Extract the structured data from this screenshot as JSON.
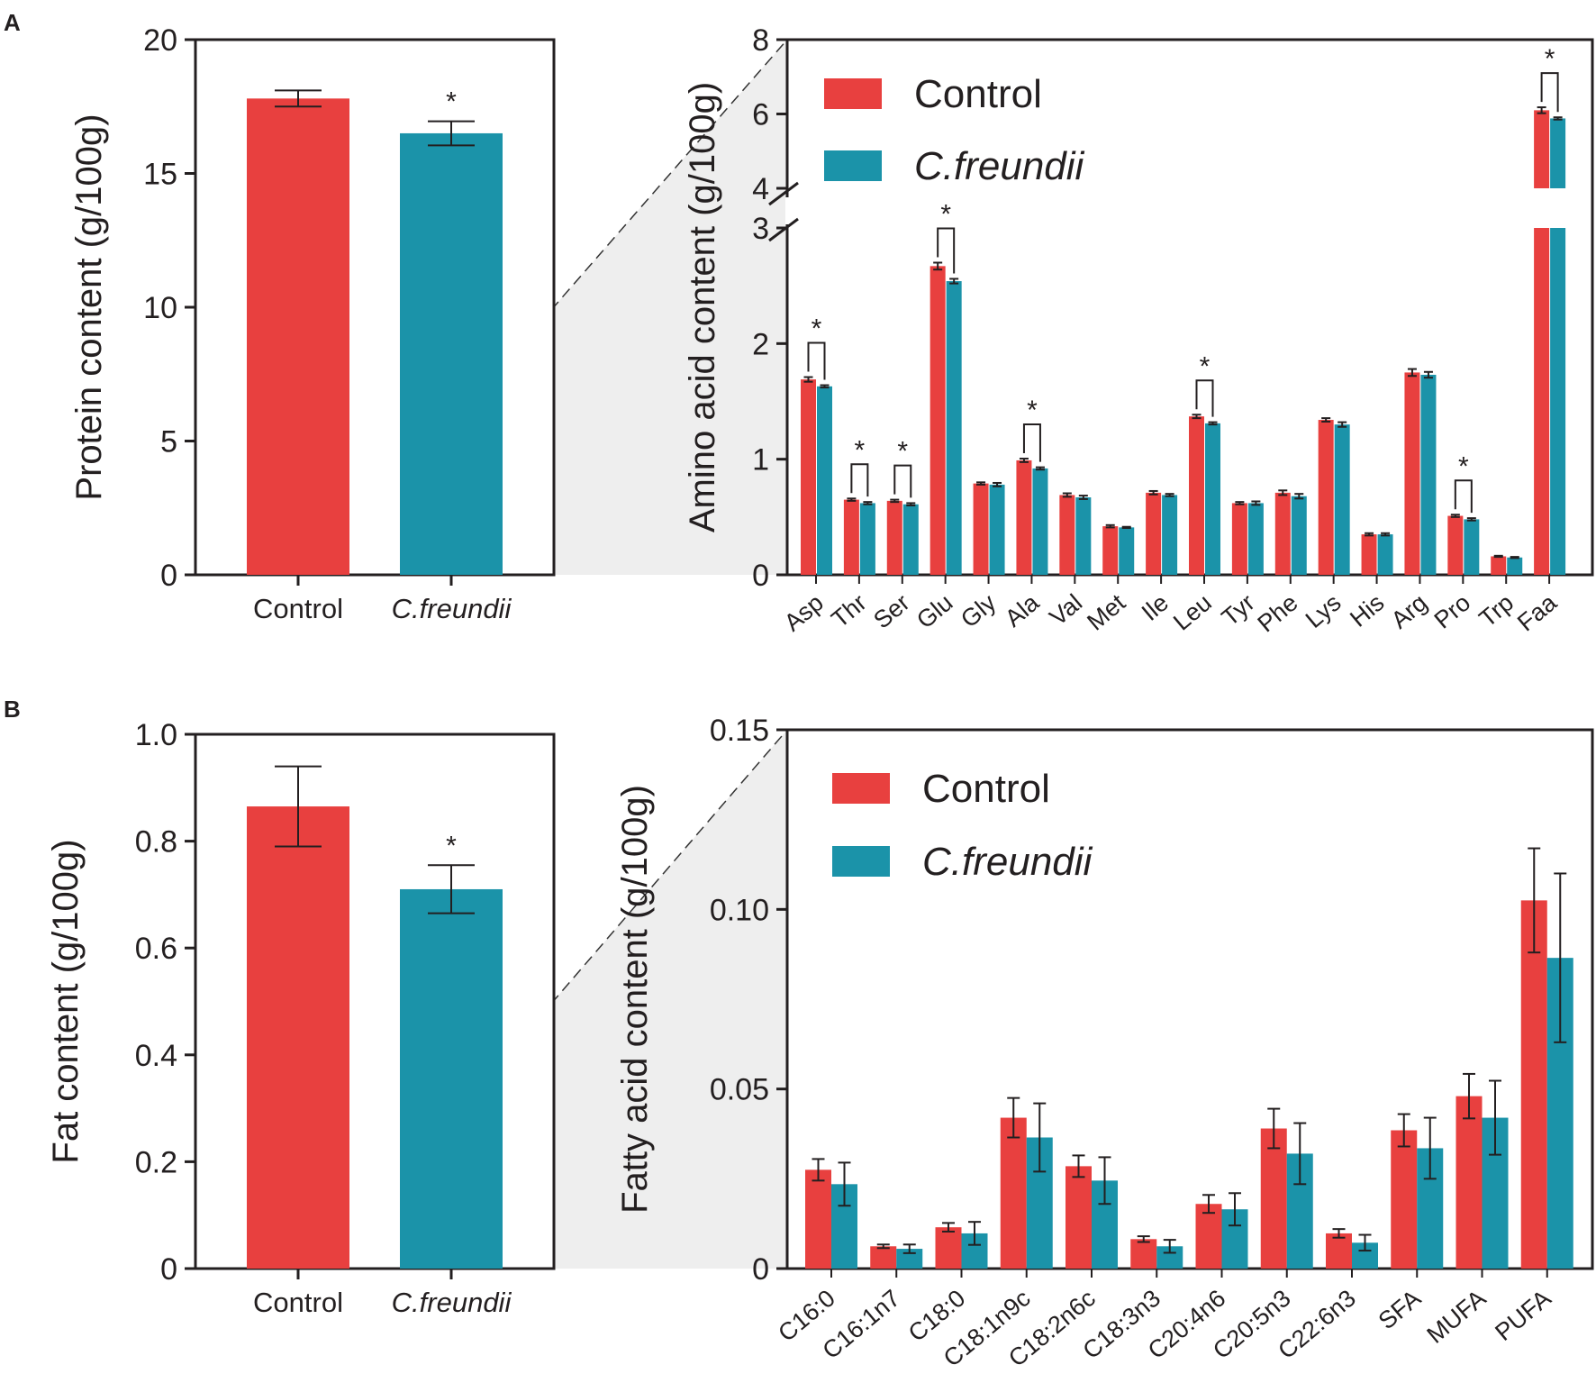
{
  "colors": {
    "control": "#e8403f",
    "treatment": "#1b93a9",
    "axis": "#231f20",
    "zoom_fill": "#eeeeee"
  },
  "panels": {
    "a": "A",
    "b": "B"
  },
  "legend": {
    "control": "Control",
    "treatment": "C.freundii"
  },
  "chart_data": [
    {
      "id": "protein",
      "type": "bar",
      "title": "",
      "xlabel": "",
      "ylabel": "Protein content (g/100g)",
      "ylim": [
        0,
        20
      ],
      "yticks": [
        0,
        5,
        10,
        15,
        20
      ],
      "categories": [
        "Control",
        "C.freundii"
      ],
      "values": [
        17.8,
        16.5
      ],
      "errors": [
        0.3,
        0.45
      ],
      "significance": [
        false,
        true
      ]
    },
    {
      "id": "amino_acid",
      "type": "bar",
      "title": "",
      "xlabel": "",
      "ylabel": "Amino acid content (g/100g)",
      "ylim": [
        0,
        8
      ],
      "axis_break": [
        3,
        4
      ],
      "yticks": [
        0,
        1,
        2,
        3,
        4,
        6,
        8
      ],
      "categories": [
        "Asp",
        "Thr",
        "Ser",
        "Glu",
        "Gly",
        "Ala",
        "Val",
        "Met",
        "Ile",
        "Leu",
        "Tyr",
        "Phe",
        "Lys",
        "His",
        "Arg",
        "Pro",
        "Trp",
        "Faa"
      ],
      "series": [
        {
          "name": "Control",
          "values": [
            1.69,
            0.65,
            0.64,
            2.67,
            0.79,
            0.99,
            0.69,
            0.42,
            0.71,
            1.37,
            0.62,
            0.71,
            1.34,
            0.35,
            1.75,
            0.51,
            0.16,
            6.1
          ],
          "errors": [
            0.02,
            0.01,
            0.01,
            0.03,
            0.01,
            0.015,
            0.015,
            0.01,
            0.015,
            0.015,
            0.01,
            0.02,
            0.015,
            0.01,
            0.03,
            0.01,
            0.005,
            0.08
          ]
        },
        {
          "name": "C.freundii",
          "values": [
            1.63,
            0.62,
            0.61,
            2.54,
            0.78,
            0.92,
            0.67,
            0.41,
            0.69,
            1.31,
            0.62,
            0.68,
            1.3,
            0.35,
            1.73,
            0.48,
            0.15,
            5.88
          ],
          "errors": [
            0.01,
            0.01,
            0.01,
            0.02,
            0.015,
            0.01,
            0.015,
            0.005,
            0.01,
            0.01,
            0.015,
            0.02,
            0.02,
            0.01,
            0.025,
            0.01,
            0.005,
            0.03
          ]
        }
      ],
      "significant": [
        "Asp",
        "Thr",
        "Ser",
        "Glu",
        "Ala",
        "Leu",
        "Pro",
        "Faa"
      ]
    },
    {
      "id": "fat",
      "type": "bar",
      "title": "",
      "xlabel": "",
      "ylabel": "Fat content (g/100g)",
      "ylim": [
        0,
        1.0
      ],
      "yticks": [
        "0",
        "0.2",
        "0.4",
        "0.6",
        "0.8",
        "1.0"
      ],
      "categories": [
        "Control",
        "C.freundii"
      ],
      "values": [
        0.865,
        0.71
      ],
      "errors": [
        0.075,
        0.045
      ],
      "significance": [
        false,
        true
      ]
    },
    {
      "id": "fatty_acid",
      "type": "bar",
      "title": "",
      "xlabel": "",
      "ylabel": "Fatty acid content (g/100g)",
      "ylim": [
        0,
        0.15
      ],
      "yticks": [
        "0",
        "0.05",
        "0.10",
        "0.15"
      ],
      "categories": [
        "C16:0",
        "C16:1n7",
        "C18:0",
        "C18:1n9c",
        "C18:2n6c",
        "C18:3n3",
        "C20:4n6",
        "C20:5n3",
        "C22:6n3",
        "SFA",
        "MUFA",
        "PUFA"
      ],
      "series": [
        {
          "name": "Control",
          "values": [
            0.0275,
            0.0062,
            0.0115,
            0.042,
            0.0285,
            0.0082,
            0.018,
            0.039,
            0.0098,
            0.0385,
            0.048,
            0.1025
          ],
          "errors": [
            0.003,
            0.0005,
            0.0012,
            0.0055,
            0.003,
            0.0008,
            0.0025,
            0.0055,
            0.0012,
            0.0045,
            0.0062,
            0.0145
          ]
        },
        {
          "name": "C.freundii",
          "values": [
            0.0235,
            0.0055,
            0.0098,
            0.0365,
            0.0245,
            0.0062,
            0.0165,
            0.032,
            0.0072,
            0.0335,
            0.042,
            0.0865
          ],
          "errors": [
            0.006,
            0.0012,
            0.0032,
            0.0095,
            0.0065,
            0.0018,
            0.0045,
            0.0085,
            0.0022,
            0.0085,
            0.0103,
            0.0235
          ]
        }
      ]
    }
  ]
}
